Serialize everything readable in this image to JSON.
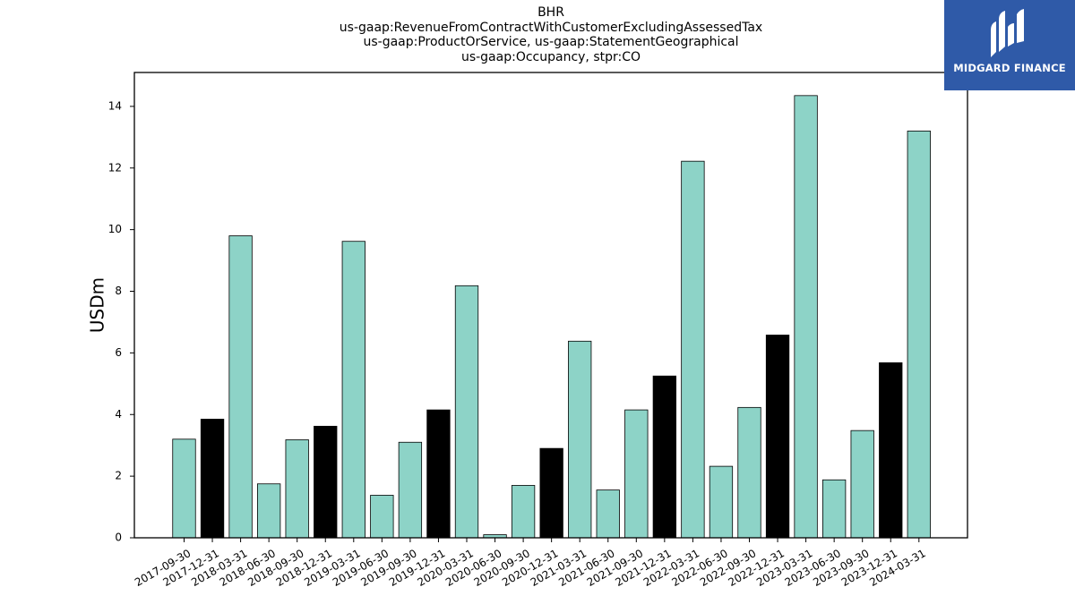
{
  "title_lines": [
    "BHR",
    "us-gaap:RevenueFromContractWithCustomerExcludingAssessedTax",
    "us-gaap:ProductOrService, us-gaap:StatementGeographical",
    "us-gaap:Occupancy, stpr:CO"
  ],
  "logo": {
    "text": "MIDGARD FINANCE",
    "icon": "midgard-finance-logo-icon",
    "background": "#2f5aa8"
  },
  "chart_data": {
    "type": "bar",
    "ylabel": "USDm",
    "xlabel": "",
    "ylim": [
      0,
      15.1
    ],
    "yticks": [
      0,
      2,
      4,
      6,
      8,
      10,
      12,
      14
    ],
    "grid": false,
    "colors": {
      "default": "#8dd3c7",
      "highlight": "#000000",
      "edge": "#000000"
    },
    "categories": [
      "2017-09-30",
      "2017-12-31",
      "2018-03-31",
      "2018-06-30",
      "2018-09-30",
      "2018-12-31",
      "2019-03-31",
      "2019-06-30",
      "2019-09-30",
      "2019-12-31",
      "2020-03-31",
      "2020-06-30",
      "2020-09-30",
      "2020-12-31",
      "2021-03-31",
      "2021-06-30",
      "2021-09-30",
      "2021-12-31",
      "2022-03-31",
      "2022-06-30",
      "2022-09-30",
      "2022-12-31",
      "2023-03-31",
      "2023-06-30",
      "2023-09-30",
      "2023-12-31",
      "2024-03-31"
    ],
    "values": [
      3.2,
      3.85,
      9.8,
      1.75,
      3.18,
      3.62,
      9.62,
      1.38,
      3.1,
      4.15,
      8.18,
      0.1,
      1.7,
      2.9,
      6.38,
      1.55,
      4.15,
      5.25,
      12.22,
      2.32,
      4.23,
      6.58,
      14.35,
      1.88,
      3.48,
      5.68,
      13.2
    ],
    "highlight": [
      false,
      true,
      false,
      false,
      false,
      true,
      false,
      false,
      false,
      true,
      false,
      false,
      false,
      true,
      false,
      false,
      false,
      true,
      false,
      false,
      false,
      true,
      false,
      false,
      false,
      true,
      false
    ]
  }
}
